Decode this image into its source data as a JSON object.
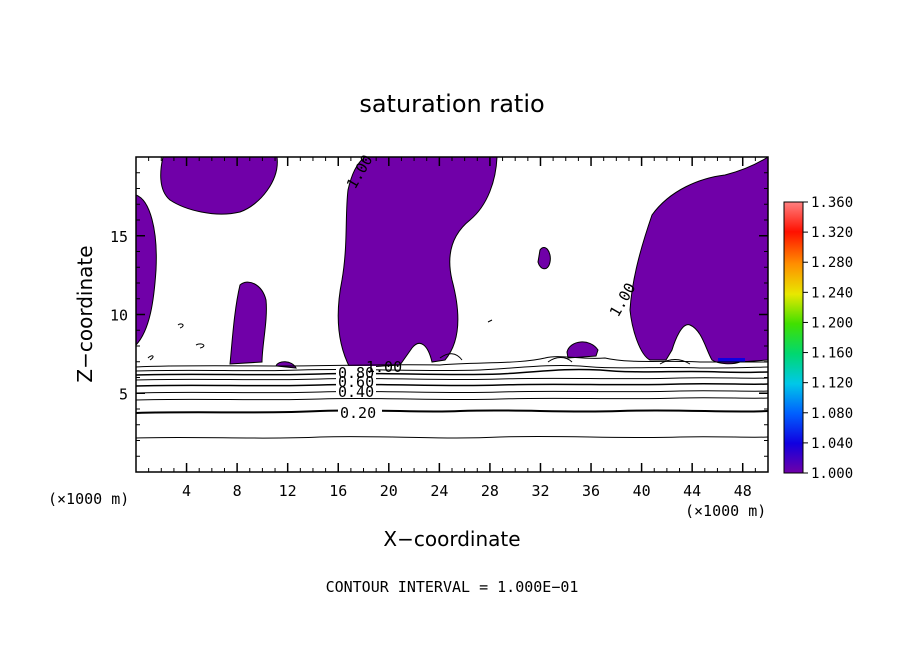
{
  "chart_data": {
    "type": "contour",
    "title": "saturation ratio",
    "xlabel": "X−coordinate",
    "ylabel": "Z−coordinate",
    "x_unit_left": "(×1000 m)",
    "x_unit_right": "(×1000 m)",
    "xlim": [
      0,
      50
    ],
    "ylim": [
      0,
      20
    ],
    "x_ticks": [
      4,
      8,
      12,
      16,
      20,
      24,
      28,
      32,
      36,
      40,
      44,
      48
    ],
    "x_tick_labels": [
      "4",
      "8",
      "12",
      "16",
      "20",
      "24",
      "28",
      "32",
      "36",
      "40",
      "44",
      "48"
    ],
    "y_ticks": [
      5,
      10,
      15
    ],
    "y_tick_labels": [
      "5",
      "10",
      "15"
    ],
    "footer": "CONTOUR INTERVAL = 1.000E−01",
    "colorbar": {
      "range": [
        1.0,
        1.36
      ],
      "ticks": [
        "1.000",
        "1.040",
        "1.080",
        "1.120",
        "1.160",
        "1.200",
        "1.240",
        "1.280",
        "1.320",
        "1.360"
      ],
      "colors": [
        "#7000a8",
        "#1000e0",
        "#0060ff",
        "#00c8e8",
        "#00d870",
        "#40e000",
        "#e8e800",
        "#ff9000",
        "#ff1000",
        "#ff8080"
      ]
    },
    "contour_labels": [
      {
        "text": "0.20",
        "x": 14.5,
        "y": 3.7
      },
      {
        "text": "0.40",
        "x": 15.8,
        "y": 5.0
      },
      {
        "text": "0.60",
        "x": 15.8,
        "y": 5.6
      },
      {
        "text": "0.80",
        "x": 15.8,
        "y": 6.2
      },
      {
        "text": "1.00",
        "x": 18.2,
        "y": 6.7
      },
      {
        "text": "1.00",
        "x": 17.6,
        "y": 18.0
      },
      {
        "text": "1.00",
        "x": 38.0,
        "y": 10.3
      }
    ],
    "fill_color": "#7000a8"
  }
}
